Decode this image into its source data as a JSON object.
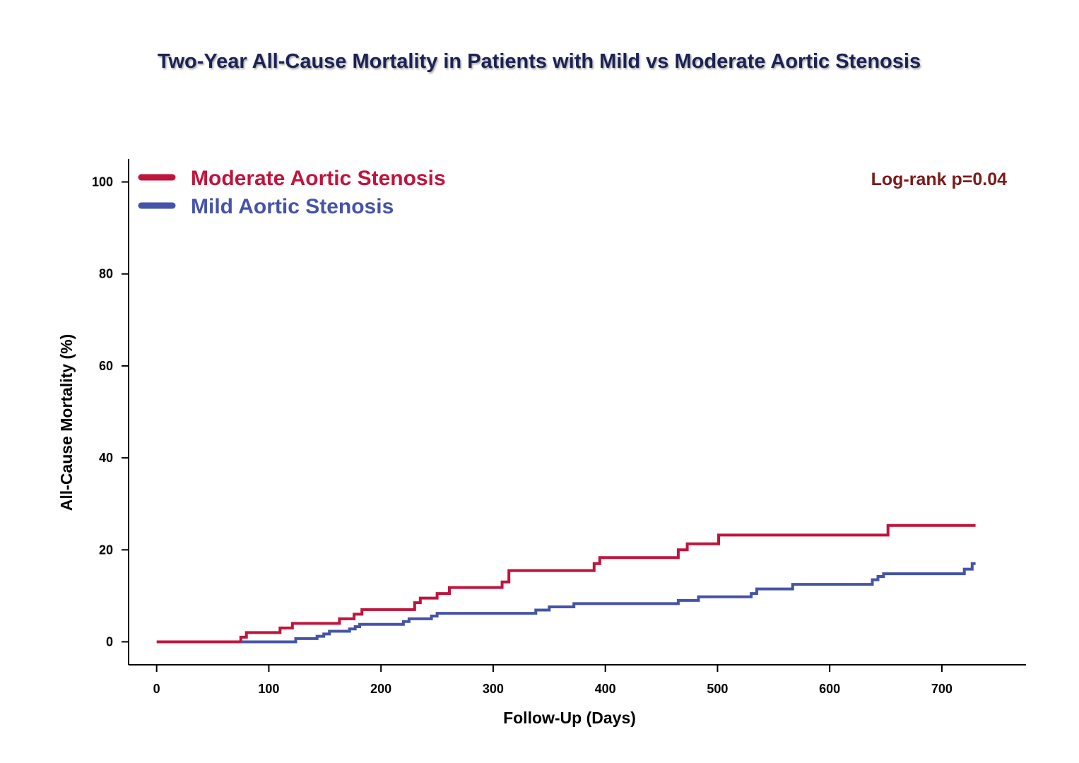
{
  "chart_data": {
    "type": "line",
    "step": true,
    "title": "Two-Year All-Cause Mortality in Patients with Mild vs Moderate Aortic Stenosis",
    "xlabel": "Follow-Up (Days)",
    "ylabel": "All-Cause Mortality (%)",
    "xlim": [
      -25,
      775
    ],
    "ylim": [
      -5,
      105
    ],
    "x_ticks": [
      0,
      100,
      200,
      300,
      400,
      500,
      600,
      700
    ],
    "y_ticks": [
      0,
      20,
      40,
      60,
      80,
      100
    ],
    "grid": false,
    "legend_position": "top-left",
    "annotation": {
      "text": "Log-rank p=0.04",
      "color": "#7b1a1a"
    },
    "series": [
      {
        "name": "Moderate Aortic Stenosis",
        "color": "#c0143c",
        "x": [
          0,
          75,
          80,
          110,
          121,
          163,
          176,
          183,
          230,
          235,
          250,
          261,
          308,
          314,
          390,
          395,
          465,
          473,
          501,
          652,
          730
        ],
        "y": [
          0,
          1,
          2,
          3,
          4,
          5,
          6,
          7,
          8.5,
          9.5,
          10.5,
          11.8,
          13,
          15.5,
          17,
          18.3,
          20,
          21.3,
          23.2,
          25.3,
          25.3
        ]
      },
      {
        "name": "Mild Aortic Stenosis",
        "color": "#4554a8",
        "x": [
          75,
          124,
          143,
          149,
          154,
          172,
          177,
          181,
          220,
          225,
          245,
          250,
          338,
          350,
          372,
          465,
          483,
          530,
          535,
          567,
          638,
          643,
          648,
          720,
          727,
          730
        ],
        "y": [
          0,
          0.7,
          1.2,
          1.7,
          2.3,
          2.8,
          3.3,
          3.8,
          4.4,
          5,
          5.6,
          6.2,
          6.9,
          7.6,
          8.3,
          9,
          9.8,
          10.5,
          11.5,
          12.5,
          13.5,
          14.2,
          14.8,
          15.8,
          17,
          17
        ]
      }
    ]
  }
}
